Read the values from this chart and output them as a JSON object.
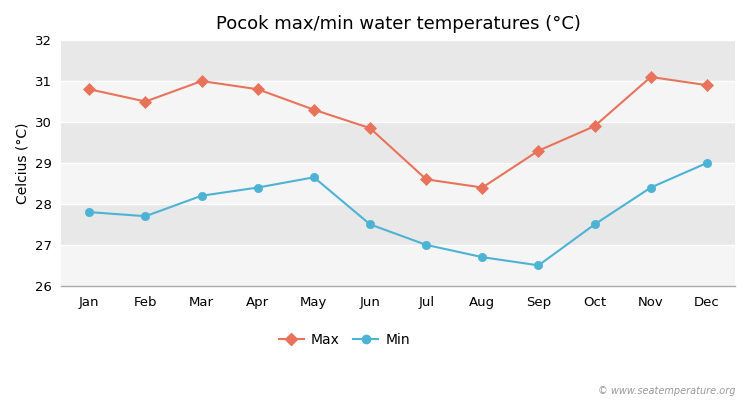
{
  "title": "Pocok max/min water temperatures (°C)",
  "ylabel": "Celcius (°C)",
  "months": [
    "Jan",
    "Feb",
    "Mar",
    "Apr",
    "May",
    "Jun",
    "Jul",
    "Aug",
    "Sep",
    "Oct",
    "Nov",
    "Dec"
  ],
  "max_values": [
    30.8,
    30.5,
    31.0,
    30.8,
    30.3,
    29.85,
    28.6,
    28.4,
    29.3,
    29.9,
    31.1,
    30.9
  ],
  "min_values": [
    27.8,
    27.7,
    28.2,
    28.4,
    28.65,
    27.5,
    27.0,
    26.7,
    26.5,
    27.5,
    28.4,
    29.0
  ],
  "max_color": "#e8735a",
  "min_color": "#4db3d4",
  "fig_bg_color": "#ffffff",
  "plot_bg_color": "#e8e8e8",
  "grid_color": "#ffffff",
  "spine_color": "#aaaaaa",
  "ylim": [
    26,
    32
  ],
  "yticks": [
    26,
    27,
    28,
    29,
    30,
    31,
    32
  ],
  "watermark": "© www.seatemperature.org",
  "title_fontsize": 13,
  "axis_label_fontsize": 10,
  "tick_fontsize": 9.5,
  "legend_fontsize": 10
}
